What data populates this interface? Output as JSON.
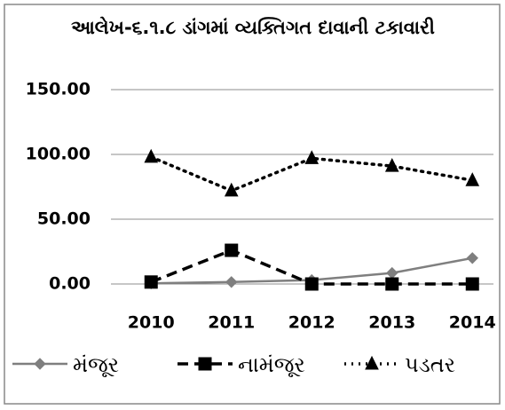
{
  "chart_data": {
    "type": "line",
    "title": "આલેખ-૬.૧.૮ ડાંગમાં વ્યક્તિગત દાવાની ટકાવારી",
    "categories": [
      "2010",
      "2011",
      "2012",
      "2013",
      "2014"
    ],
    "series": [
      {
        "name": "મંજૂર",
        "color": "#7f7f7f",
        "line_style": "solid",
        "marker": "diamond",
        "values": [
          0.5,
          1.5,
          3,
          8.5,
          20
        ]
      },
      {
        "name": "નામંજૂર",
        "color": "#000000",
        "line_style": "dashed",
        "marker": "square",
        "values": [
          1.5,
          26,
          0,
          0,
          0
        ]
      },
      {
        "name": "પડતર",
        "color": "#000000",
        "line_style": "dotted",
        "marker": "triangle",
        "values": [
          98,
          72,
          97,
          91,
          80
        ]
      }
    ],
    "ylim": [
      0,
      150
    ],
    "yticks": [
      {
        "value": 0,
        "label": "0.00"
      },
      {
        "value": 50,
        "label": "50.00"
      },
      {
        "value": 100,
        "label": "100.00"
      },
      {
        "value": 150,
        "label": "150.00"
      }
    ],
    "grid": true,
    "legend": "bottom"
  }
}
